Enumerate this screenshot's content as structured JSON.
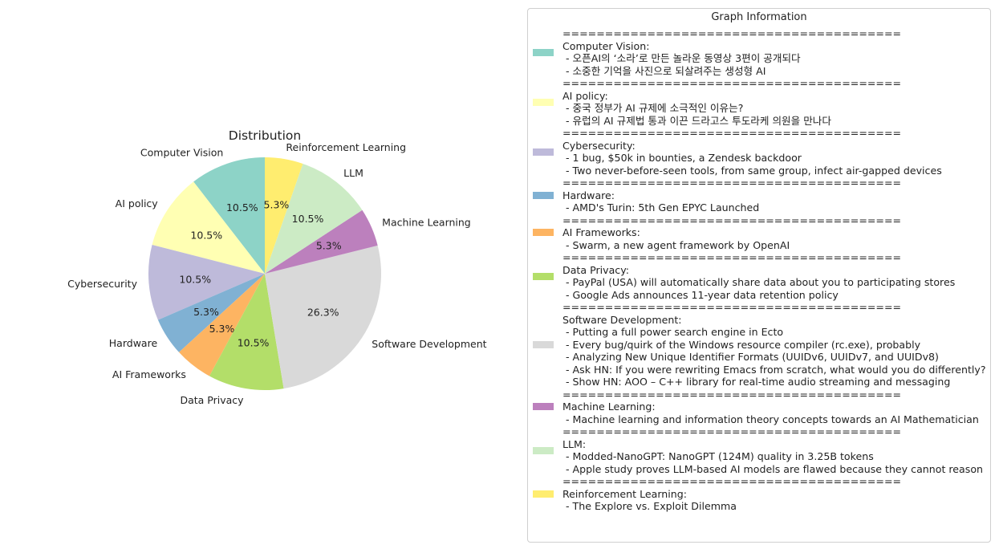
{
  "chart_data": {
    "type": "pie",
    "title": "Distribution",
    "slices": [
      {
        "label": "Computer Vision",
        "value": 10.5,
        "pct_label": "10.5%",
        "color": "#8dd3c7"
      },
      {
        "label": "AI policy",
        "value": 10.5,
        "pct_label": "10.5%",
        "color": "#ffffb3"
      },
      {
        "label": "Cybersecurity",
        "value": 10.5,
        "pct_label": "10.5%",
        "color": "#bebada"
      },
      {
        "label": "Hardware",
        "value": 5.3,
        "pct_label": "5.3%",
        "color": "#80b1d3"
      },
      {
        "label": "AI Frameworks",
        "value": 5.3,
        "pct_label": "5.3%",
        "color": "#fdb462"
      },
      {
        "label": "Data Privacy",
        "value": 10.5,
        "pct_label": "10.5%",
        "color": "#b3de69"
      },
      {
        "label": "Software Development",
        "value": 26.3,
        "pct_label": "26.3%",
        "color": "#d9d9d9"
      },
      {
        "label": "Machine Learning",
        "value": 5.3,
        "pct_label": "5.3%",
        "color": "#bc80bd"
      },
      {
        "label": "LLM",
        "value": 10.5,
        "pct_label": "10.5%",
        "color": "#ccebc5"
      },
      {
        "label": "Reinforcement Learning",
        "value": 5.3,
        "pct_label": "5.3%",
        "color": "#ffed6f"
      }
    ],
    "start_angle_deg": 90,
    "direction": "counterclockwise",
    "legend_position": "right"
  },
  "legend": {
    "title": "Graph Information",
    "separator": "========================================",
    "groups": [
      {
        "color": "#8dd3c7",
        "lines": [
          "Computer Vision:",
          " - 오픈AI의 ‘소라’로 만든 놀라운 동영상 3편이 공개되다",
          " - 소중한 기억을 사진으로 되살려주는 생성형 AI"
        ]
      },
      {
        "color": "#ffffb3",
        "lines": [
          "AI policy:",
          " - 중국 정부가 AI 규제에 소극적인 이유는?",
          " - 유럽의 AI 규제법 통과 이끈 드라고스 투도라케 의원을 만나다"
        ]
      },
      {
        "color": "#bebada",
        "lines": [
          "Cybersecurity:",
          " - 1 bug, $50k in bounties, a Zendesk backdoor",
          " - Two never-before-seen tools, from same group, infect air-gapped devices"
        ]
      },
      {
        "color": "#80b1d3",
        "lines": [
          "Hardware:",
          " - AMD's Turin: 5th Gen EPYC Launched"
        ]
      },
      {
        "color": "#fdb462",
        "lines": [
          "AI Frameworks:",
          " - Swarm, a new agent framework by OpenAI"
        ]
      },
      {
        "color": "#b3de69",
        "lines": [
          "Data Privacy:",
          " - PayPal (USA) will automatically share data about you to participating stores",
          " - Google Ads announces 11-year data retention policy"
        ]
      },
      {
        "color": "#d9d9d9",
        "lines": [
          "Software Development:",
          " - Putting a full power search engine in Ecto",
          " - Every bug/quirk of the Windows resource compiler (rc.exe), probably",
          " - Analyzing New Unique Identifier Formats (UUIDv6, UUIDv7, and UUIDv8)",
          " - Ask HN: If you were rewriting Emacs from scratch, what would you do differently?",
          " - Show HN: AOO – C++ library for real-time audio streaming and messaging"
        ]
      },
      {
        "color": "#bc80bd",
        "lines": [
          "Machine Learning:",
          " - Machine learning and information theory concepts towards an AI Mathematician"
        ]
      },
      {
        "color": "#ccebc5",
        "lines": [
          "LLM:",
          " - Modded-NanoGPT: NanoGPT (124M) quality in 3.25B tokens",
          " - Apple study proves LLM-based AI models are flawed because they cannot reason"
        ]
      },
      {
        "color": "#ffed6f",
        "lines": [
          "Reinforcement Learning:",
          " - The Explore vs. Exploit Dilemma"
        ]
      }
    ]
  }
}
